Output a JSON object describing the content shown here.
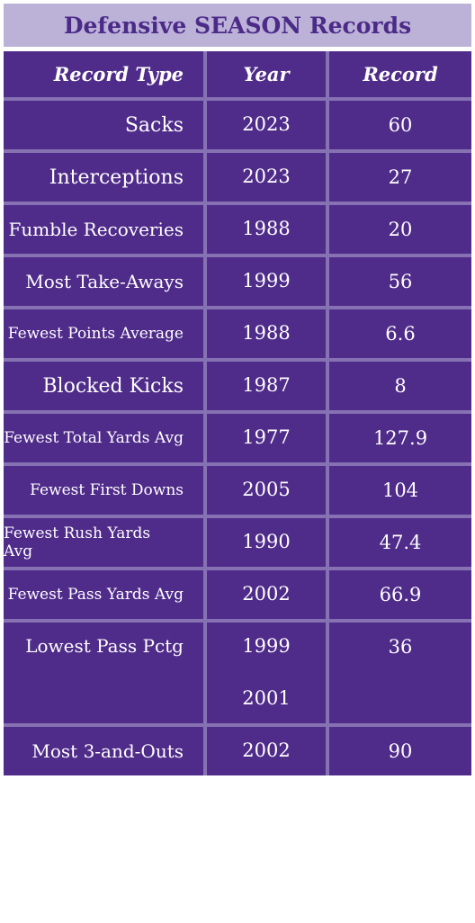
{
  "header": {
    "title": "Defensive SEASON Records"
  },
  "table": {
    "columns": [
      "Record Type",
      "Year",
      "Record"
    ],
    "rows": [
      {
        "type": "Sacks",
        "years": [
          2023
        ],
        "record": 60
      },
      {
        "type": "Interceptions",
        "years": [
          2023
        ],
        "record": 27
      },
      {
        "type": "Fumble Recoveries",
        "years": [
          1988
        ],
        "record": 20
      },
      {
        "type": "Most Take-Aways",
        "years": [
          1999
        ],
        "record": 56
      },
      {
        "type": "Fewest Points Average",
        "years": [
          1988
        ],
        "record": 6.6
      },
      {
        "type": "Blocked Kicks",
        "years": [
          1987
        ],
        "record": 8
      },
      {
        "type": "Fewest Total Yards Avg",
        "years": [
          1977
        ],
        "record": 127.9
      },
      {
        "type": "Fewest First Downs",
        "years": [
          2005
        ],
        "record": 104
      },
      {
        "type": "Fewest Rush Yards Avg",
        "years": [
          1990
        ],
        "record": 47.4
      },
      {
        "type": "Fewest Pass Yards Avg",
        "years": [
          2002
        ],
        "record": 66.9
      },
      {
        "type": "Lowest Pass Pctg",
        "years": [
          1999,
          2001
        ],
        "record": 36
      },
      {
        "type": "Most 3-and-Outs",
        "years": [
          2002
        ],
        "record": 90
      }
    ]
  }
}
